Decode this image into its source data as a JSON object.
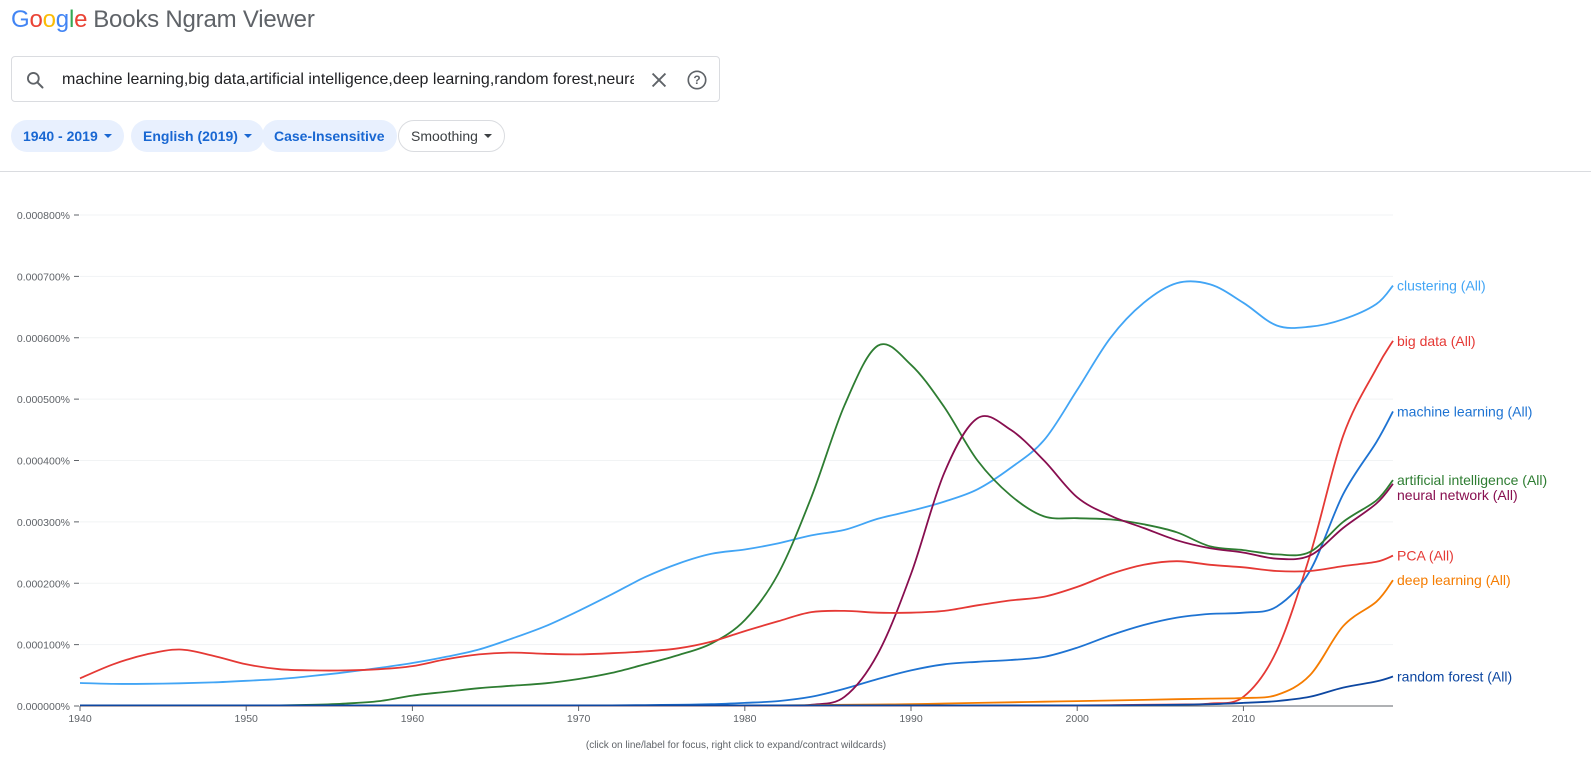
{
  "header": {
    "logo_text": "Google",
    "title": "Books Ngram Viewer"
  },
  "search": {
    "value": "machine learning,big data,artificial intelligence,deep learning,random forest,neural network,clustering,PCA",
    "search_icon": "search-icon",
    "clear_icon": "close-icon",
    "help_icon": "help-icon"
  },
  "filters": {
    "year_range": "1940 - 2019",
    "corpus": "English (2019)",
    "case": "Case-Insensitive",
    "smoothing": "Smoothing"
  },
  "footnote": "(click on line/label for focus, right click to expand/contract wildcards)",
  "chart_data": {
    "type": "line",
    "x": [
      1940,
      1942,
      1944,
      1946,
      1948,
      1950,
      1952,
      1954,
      1956,
      1958,
      1960,
      1962,
      1964,
      1966,
      1968,
      1970,
      1972,
      1974,
      1976,
      1978,
      1980,
      1982,
      1984,
      1986,
      1988,
      1990,
      1992,
      1994,
      1996,
      1998,
      2000,
      2002,
      2004,
      2006,
      2008,
      2010,
      2012,
      2014,
      2016,
      2018,
      2019
    ],
    "xlim": [
      1940,
      2019
    ],
    "ylim": [
      0,
      0.0008
    ],
    "x_ticks": [
      1940,
      1950,
      1960,
      1970,
      1980,
      1990,
      2000,
      2010
    ],
    "y_ticks": [
      "0.000000%",
      "0.000100%",
      "0.000200%",
      "0.000300%",
      "0.000400%",
      "0.000500%",
      "0.000600%",
      "0.000700%",
      "0.000800%"
    ],
    "y_tick_values": [
      0,
      0.0001,
      0.0002,
      0.0003,
      0.0004,
      0.0005,
      0.0006,
      0.0007,
      0.0008
    ],
    "grid": true,
    "legend": "right-end labels",
    "series": [
      {
        "name": "clustering (All)",
        "color": "#42a5f5",
        "values": [
          3.75e-05,
          3.6e-05,
          3.62e-05,
          3.7e-05,
          3.85e-05,
          4.1e-05,
          4.4e-05,
          4.9e-05,
          5.5e-05,
          6.2e-05,
          7e-05,
          8e-05,
          9.2e-05,
          0.00011,
          0.00013,
          0.000155,
          0.000182,
          0.00021,
          0.000232,
          0.000248,
          0.000255,
          0.000265,
          0.000278,
          0.000287,
          0.000305,
          0.000318,
          0.000333,
          0.000353,
          0.000388,
          0.000433,
          0.000515,
          0.0006,
          0.000657,
          0.000689,
          0.000687,
          0.000657,
          0.00062,
          0.000618,
          0.00063,
          0.000655,
          0.000685
        ]
      },
      {
        "name": "big data (All)",
        "color": "#e53935",
        "values": [
          1e-06,
          1e-06,
          1e-06,
          1e-06,
          1e-06,
          1e-06,
          1e-06,
          1e-06,
          1e-06,
          1e-06,
          1e-06,
          1e-06,
          1e-06,
          1e-06,
          1e-06,
          1e-06,
          1e-06,
          1e-06,
          1e-06,
          1e-06,
          1e-06,
          1e-06,
          1e-06,
          1e-06,
          1e-06,
          1e-06,
          1e-06,
          1e-06,
          1e-06,
          1e-06,
          1e-06,
          1.5e-06,
          2e-06,
          2.5e-06,
          4e-06,
          1.5e-05,
          9e-05,
          0.000245,
          0.00044,
          0.00055,
          0.000595
        ]
      },
      {
        "name": "machine learning (All)",
        "color": "#1e73d2",
        "values": [
          1e-06,
          1e-06,
          1e-06,
          1e-06,
          1e-06,
          1e-06,
          1e-06,
          1e-06,
          1e-06,
          1e-06,
          1e-06,
          1e-06,
          1e-06,
          1e-06,
          1e-06,
          1e-06,
          1e-06,
          1.5e-06,
          2e-06,
          3e-06,
          5e-06,
          8e-06,
          1.5e-05,
          2.8e-05,
          4.4e-05,
          5.8e-05,
          6.8e-05,
          7.2e-05,
          7.5e-05,
          8e-05,
          9.5e-05,
          0.000115,
          0.000132,
          0.000144,
          0.00015,
          0.000152,
          0.000162,
          0.00022,
          0.000345,
          0.00043,
          0.00048
        ]
      },
      {
        "name": "artificial intelligence (All)",
        "color": "#2e7d32",
        "values": [
          1e-06,
          1e-06,
          1e-06,
          1e-06,
          1e-06,
          1e-06,
          1e-06,
          2e-06,
          4e-06,
          8e-06,
          1.7e-05,
          2.3e-05,
          2.9e-05,
          3.3e-05,
          3.7e-05,
          4.4e-05,
          5.4e-05,
          6.8e-05,
          8.3e-05,
          0.000102,
          0.00014,
          0.000215,
          0.00034,
          0.00049,
          0.000587,
          0.000556,
          0.000487,
          0.0004,
          0.000343,
          0.000309,
          0.000306,
          0.000304,
          0.000296,
          0.000283,
          0.00026,
          0.000254,
          0.000247,
          0.000251,
          0.0003,
          0.000335,
          0.000368
        ]
      },
      {
        "name": "neural network (All)",
        "color": "#880e4f",
        "values": [
          1e-06,
          1e-06,
          1e-06,
          1e-06,
          1e-06,
          1e-06,
          1e-06,
          1e-06,
          1e-06,
          1e-06,
          1e-06,
          1e-06,
          1e-06,
          1e-06,
          1e-06,
          1e-06,
          1e-06,
          1e-06,
          1e-06,
          1e-06,
          1e-06,
          1e-06,
          2e-06,
          1.5e-05,
          8.5e-05,
          0.000215,
          0.00038,
          0.000469,
          0.00045,
          0.0004,
          0.00034,
          0.00031,
          0.00029,
          0.00027,
          0.000257,
          0.00025,
          0.00024,
          0.000245,
          0.00029,
          0.00033,
          0.000362
        ]
      },
      {
        "name": "PCA (All)",
        "color": "#e53935",
        "values": [
          4.5e-05,
          6.8e-05,
          8.4e-05,
          9.2e-05,
          8.2e-05,
          6.8e-05,
          6e-05,
          5.8e-05,
          5.8e-05,
          6e-05,
          6.5e-05,
          7.6e-05,
          8.4e-05,
          8.7e-05,
          8.5e-05,
          8.4e-05,
          8.6e-05,
          8.9e-05,
          9.4e-05,
          0.000105,
          0.000122,
          0.000138,
          0.000153,
          0.000155,
          0.000152,
          0.000152,
          0.000155,
          0.000164,
          0.000172,
          0.000178,
          0.000194,
          0.000215,
          0.00023,
          0.000236,
          0.00023,
          0.000226,
          0.00022,
          0.00022,
          0.000228,
          0.000235,
          0.000245
        ]
      },
      {
        "name": "deep learning (All)",
        "color": "#f57c00",
        "values": [
          1e-06,
          1e-06,
          1e-06,
          1e-06,
          1e-06,
          1e-06,
          1e-06,
          1e-06,
          1e-06,
          1e-06,
          1e-06,
          1e-06,
          1e-06,
          1e-06,
          1e-06,
          1e-06,
          1e-06,
          1e-06,
          1e-06,
          1e-06,
          1e-06,
          1e-06,
          1.5e-06,
          2e-06,
          2.5e-06,
          3e-06,
          4e-06,
          5e-06,
          6e-06,
          7e-06,
          8e-06,
          9e-06,
          1e-05,
          1.1e-05,
          1.2e-05,
          1.3e-05,
          1.8e-05,
          5e-05,
          0.00013,
          0.00017,
          0.000205
        ]
      },
      {
        "name": "random forest (All)",
        "color": "#0d47a1",
        "values": [
          1e-06,
          1e-06,
          1e-06,
          1e-06,
          1e-06,
          1e-06,
          1e-06,
          1e-06,
          1e-06,
          1e-06,
          1e-06,
          1e-06,
          1e-06,
          1e-06,
          1e-06,
          1e-06,
          1e-06,
          1e-06,
          1e-06,
          1e-06,
          1e-06,
          1e-06,
          1e-06,
          1e-06,
          1e-06,
          1e-06,
          1e-06,
          1e-06,
          1e-06,
          1e-06,
          1e-06,
          1e-06,
          1.5e-06,
          2e-06,
          3e-06,
          5e-06,
          8e-06,
          1.5e-05,
          3e-05,
          4e-05,
          4.8e-05
        ]
      }
    ]
  }
}
